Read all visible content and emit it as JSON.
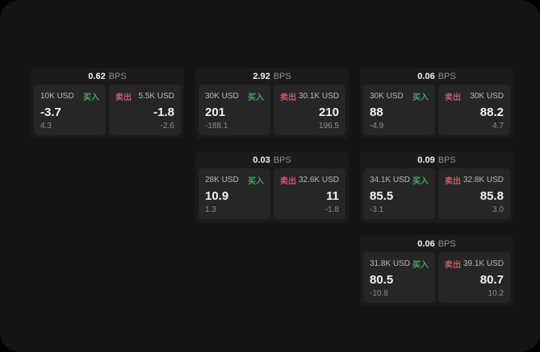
{
  "theme": {
    "surface_bg": "#151516",
    "card_bg": "#1b1b1d",
    "panel_bg": "#262627",
    "text_primary": "#f2f2f2",
    "text_secondary": "#b9b9b9",
    "text_muted": "#8f8f8f",
    "buy_color": "#46a860",
    "sell_color": "#c95a68"
  },
  "labels": {
    "bps_unit": "BPS",
    "buy": "买入",
    "sell": "卖出"
  },
  "cards": [
    {
      "bps": "0.62",
      "row": 1,
      "col": 1,
      "buy": {
        "size": "10K USD",
        "price": "-3.7",
        "delta": "4.3"
      },
      "sell": {
        "size": "5.5K USD",
        "price": "-1.8",
        "delta": "-2.6"
      }
    },
    {
      "bps": "2.92",
      "row": 1,
      "col": 2,
      "buy": {
        "size": "30K USD",
        "price": "201",
        "delta": "-188.1"
      },
      "sell": {
        "size": "30.1K USD",
        "price": "210",
        "delta": "196.5"
      }
    },
    {
      "bps": "0.06",
      "row": 1,
      "col": 3,
      "buy": {
        "size": "30K USD",
        "price": "88",
        "delta": "-4.9"
      },
      "sell": {
        "size": "30K USD",
        "price": "88.2",
        "delta": "4.7"
      }
    },
    {
      "bps": "0.03",
      "row": 2,
      "col": 2,
      "buy": {
        "size": "28K USD",
        "price": "10.9",
        "delta": "1.3"
      },
      "sell": {
        "size": "32.6K USD",
        "price": "11",
        "delta": "-1.8"
      }
    },
    {
      "bps": "0.09",
      "row": 2,
      "col": 3,
      "buy": {
        "size": "34.1K USD",
        "price": "85.5",
        "delta": "-3.1"
      },
      "sell": {
        "size": "32.8K USD",
        "price": "85.8",
        "delta": "3.0"
      }
    },
    {
      "bps": "0.06",
      "row": 3,
      "col": 3,
      "buy": {
        "size": "31.8K USD",
        "price": "80.5",
        "delta": "-10.8"
      },
      "sell": {
        "size": "39.1K USD",
        "price": "80.7",
        "delta": "10.2"
      }
    }
  ]
}
